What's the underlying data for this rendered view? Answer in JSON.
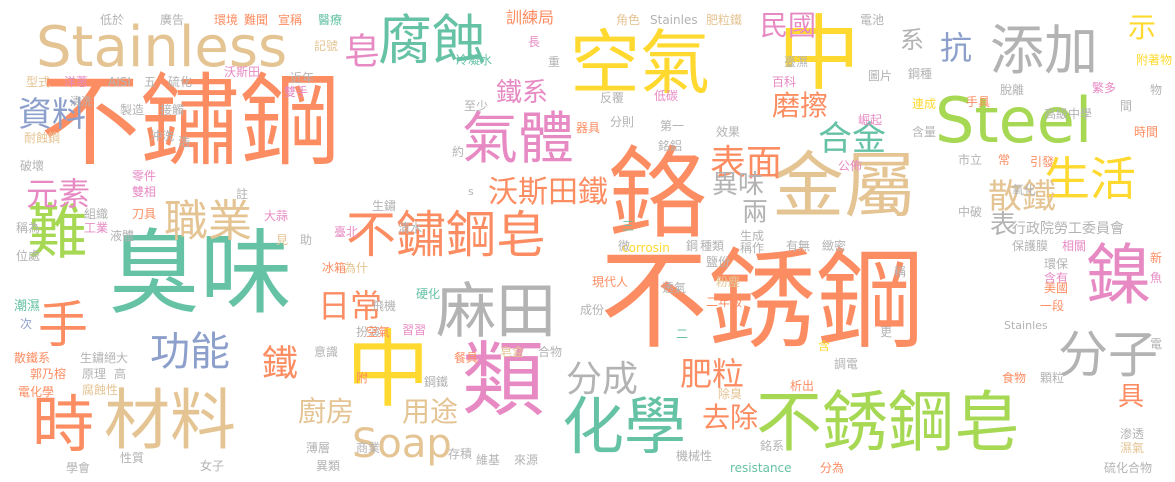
{
  "palette": {
    "orange": "#fc8d62",
    "green": "#66c2a5",
    "blue": "#8da0cb",
    "pink": "#e78ac3",
    "lime": "#a6d854",
    "yellow": "#ffd92f",
    "tan": "#e5c494",
    "gray": "#b3b3b3"
  },
  "words": [
    {
      "text": "不銹鋼"
    },
    {
      "text": "不鏽鋼"
    },
    {
      "text": "空氣"
    },
    {
      "text": "中"
    },
    {
      "text": "Steel"
    },
    {
      "text": "臭味"
    },
    {
      "text": "鉻"
    },
    {
      "text": "金屬"
    },
    {
      "text": "Stainless"
    },
    {
      "text": "不銹鋼皂"
    },
    {
      "text": "材料"
    },
    {
      "text": "中"
    },
    {
      "text": "化學"
    },
    {
      "text": "類"
    },
    {
      "text": "腐蝕"
    },
    {
      "text": "添加"
    },
    {
      "text": "氣體"
    },
    {
      "text": "麻田"
    },
    {
      "text": "不鏽鋼皂"
    },
    {
      "text": "鎳"
    },
    {
      "text": "難"
    },
    {
      "text": "生活"
    },
    {
      "text": "時"
    },
    {
      "text": "分子"
    },
    {
      "text": "手"
    },
    {
      "text": "職業"
    },
    {
      "text": "Soap"
    },
    {
      "text": "功能"
    },
    {
      "text": "表面"
    },
    {
      "text": "分成"
    },
    {
      "text": "合金"
    },
    {
      "text": "元素"
    },
    {
      "text": "散鐵"
    },
    {
      "text": "肥粒"
    },
    {
      "text": "日常"
    },
    {
      "text": "沃斯田鐵"
    },
    {
      "text": "資料"
    },
    {
      "text": "抗"
    },
    {
      "text": "民國"
    },
    {
      "text": "皂"
    },
    {
      "text": "鐵系"
    },
    {
      "text": "磨擦"
    },
    {
      "text": "系"
    },
    {
      "text": "異味"
    },
    {
      "text": "廚房"
    },
    {
      "text": "用途"
    },
    {
      "text": "去除"
    },
    {
      "text": "鐵"
    },
    {
      "text": "示"
    },
    {
      "text": "兩"
    },
    {
      "text": "表"
    },
    {
      "text": "具"
    },
    {
      "text": "行政院勞工委員會"
    },
    {
      "text": "低於"
    },
    {
      "text": "廣告"
    },
    {
      "text": "環境"
    },
    {
      "text": "難聞"
    },
    {
      "text": "宣稱"
    },
    {
      "text": "醫療"
    },
    {
      "text": "Stainles"
    },
    {
      "text": "肥粒鐵"
    },
    {
      "text": "角色"
    },
    {
      "text": "電池"
    },
    {
      "text": "訓練局"
    },
    {
      "text": "冷凝水"
    },
    {
      "text": "記號"
    },
    {
      "text": "近年"
    },
    {
      "text": "雙手"
    },
    {
      "text": "沃斯田"
    },
    {
      "text": "型式"
    },
    {
      "text": "洋蔥"
    },
    {
      "text": "AISI"
    },
    {
      "text": "五"
    },
    {
      "text": "硫化"
    },
    {
      "text": "清洗"
    },
    {
      "text": "製造"
    },
    {
      "text": "接觸"
    },
    {
      "text": "耐蝕鋼"
    },
    {
      "text": "沖洗"
    },
    {
      "text": "破壞"
    },
    {
      "text": "零件"
    },
    {
      "text": "雙相"
    },
    {
      "text": "刀具"
    },
    {
      "text": "組織"
    },
    {
      "text": "工業"
    },
    {
      "text": "液體"
    },
    {
      "text": "稱為"
    },
    {
      "text": "位處"
    },
    {
      "text": "潮濕"
    },
    {
      "text": "次"
    },
    {
      "text": "散鐵系"
    },
    {
      "text": "生鏽絕大"
    },
    {
      "text": "郭乃榕"
    },
    {
      "text": "原理"
    },
    {
      "text": "高"
    },
    {
      "text": "電化學"
    },
    {
      "text": "腐蝕性"
    },
    {
      "text": "學會"
    },
    {
      "text": "性質"
    },
    {
      "text": "女子"
    },
    {
      "text": "薄層"
    },
    {
      "text": "異類"
    },
    {
      "text": "商業"
    },
    {
      "text": "來源"
    },
    {
      "text": "維基"
    },
    {
      "text": "存積"
    },
    {
      "text": "機械性"
    },
    {
      "text": "resistance"
    },
    {
      "text": "分為"
    },
    {
      "text": "硫化合物"
    },
    {
      "text": "渗透"
    },
    {
      "text": "濕氣"
    },
    {
      "text": "大蒜"
    },
    {
      "text": "生鏽"
    },
    {
      "text": "清水"
    },
    {
      "text": "冰箱"
    },
    {
      "text": "為什"
    },
    {
      "text": "硬化"
    },
    {
      "text": "飛機"
    },
    {
      "text": "扮演"
    },
    {
      "text": "空氣"
    },
    {
      "text": "習習"
    },
    {
      "text": "意識"
    },
    {
      "text": "鋼鐵"
    },
    {
      "text": "皂盒"
    },
    {
      "text": "合物"
    },
    {
      "text": "餐具"
    },
    {
      "text": "現代人"
    },
    {
      "text": "成份"
    },
    {
      "text": "透氣"
    },
    {
      "text": "粉塵"
    },
    {
      "text": "二年級"
    },
    {
      "text": "鹽份"
    },
    {
      "text": "生成"
    },
    {
      "text": "有無"
    },
    {
      "text": "緻密"
    },
    {
      "text": "corrosin"
    },
    {
      "text": "鋼"
    },
    {
      "text": "種類"
    },
    {
      "text": "稱作"
    },
    {
      "text": "保護膜"
    },
    {
      "text": "相關"
    },
    {
      "text": "環保"
    },
    {
      "text": "含有"
    },
    {
      "text": "美國"
    },
    {
      "text": "一段"
    },
    {
      "text": "新"
    },
    {
      "text": "食物"
    },
    {
      "text": "顆粒"
    },
    {
      "text": "調電"
    },
    {
      "text": "除臭"
    },
    {
      "text": "析出"
    },
    {
      "text": "銘系"
    },
    {
      "text": "市立"
    },
    {
      "text": "公佈"
    },
    {
      "text": "引發"
    },
    {
      "text": "氧化"
    },
    {
      "text": "中破"
    },
    {
      "text": "高級中學"
    },
    {
      "text": "時間"
    },
    {
      "text": "含量"
    },
    {
      "text": "手具"
    },
    {
      "text": "崛起"
    },
    {
      "text": "連成"
    },
    {
      "text": "脫離"
    },
    {
      "text": "百科"
    },
    {
      "text": "圖片"
    },
    {
      "text": "鋼種"
    },
    {
      "text": "附著物"
    },
    {
      "text": "繁多"
    },
    {
      "text": "臺濕"
    },
    {
      "text": "低碳"
    },
    {
      "text": "反覆"
    },
    {
      "text": "分則"
    },
    {
      "text": "第一"
    },
    {
      "text": "效果"
    },
    {
      "text": "器具"
    },
    {
      "text": "銘鋁"
    },
    {
      "text": "至少"
    },
    {
      "text": "重"
    },
    {
      "text": "長"
    },
    {
      "text": "Stainles"
    },
    {
      "text": "助"
    },
    {
      "text": "見"
    },
    {
      "text": "臺北"
    },
    {
      "text": "約"
    },
    {
      "text": "物"
    },
    {
      "text": "間"
    },
    {
      "text": "常"
    },
    {
      "text": "更"
    },
    {
      "text": "魚"
    },
    {
      "text": "電"
    },
    {
      "text": "含"
    },
    {
      "text": "三"
    },
    {
      "text": "二"
    },
    {
      "text": "微"
    },
    {
      "text": "附"
    },
    {
      "text": "稱"
    },
    {
      "text": "註"
    },
    {
      "text": "浩"
    },
    {
      "text": "s"
    }
  ]
}
